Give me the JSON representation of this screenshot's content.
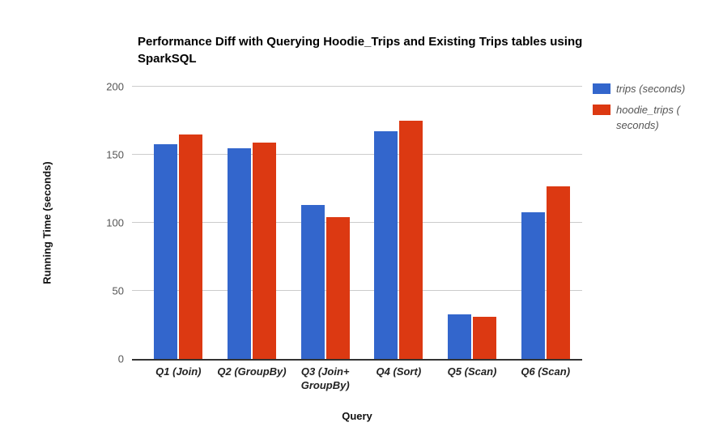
{
  "chart_data": {
    "type": "bar",
    "title": "Performance Diff with Querying Hoodie_Trips and Existing Trips tables using SparkSQL",
    "xlabel": "Query",
    "ylabel": "Running Time (seconds)",
    "ylim": [
      0,
      200
    ],
    "yticks": [
      0,
      50,
      100,
      150,
      200
    ],
    "grid": true,
    "legend_position": "right",
    "categories": [
      "Q1 (Join)",
      "Q2 (GroupBy)",
      "Q3 (Join+ GroupBy)",
      "Q4 (Sort)",
      "Q5 (Scan)",
      "Q6 (Scan)"
    ],
    "series": [
      {
        "id": "trips",
        "name": "trips (seconds)",
        "color": "#3366cc",
        "values": [
          158,
          155,
          113,
          167,
          33,
          108
        ]
      },
      {
        "id": "hoodie_trips",
        "name": "hoodie_trips ( seconds)",
        "color": "#dc3912",
        "values": [
          165,
          159,
          104,
          175,
          31,
          127
        ]
      }
    ],
    "colors": {
      "background": "#ffffff",
      "gridline": "#cccccc",
      "axis_line": "#333333",
      "tick_label": "#555555",
      "category_label": "#222222",
      "legend_text": "#555555",
      "title_text": "#000000"
    }
  }
}
